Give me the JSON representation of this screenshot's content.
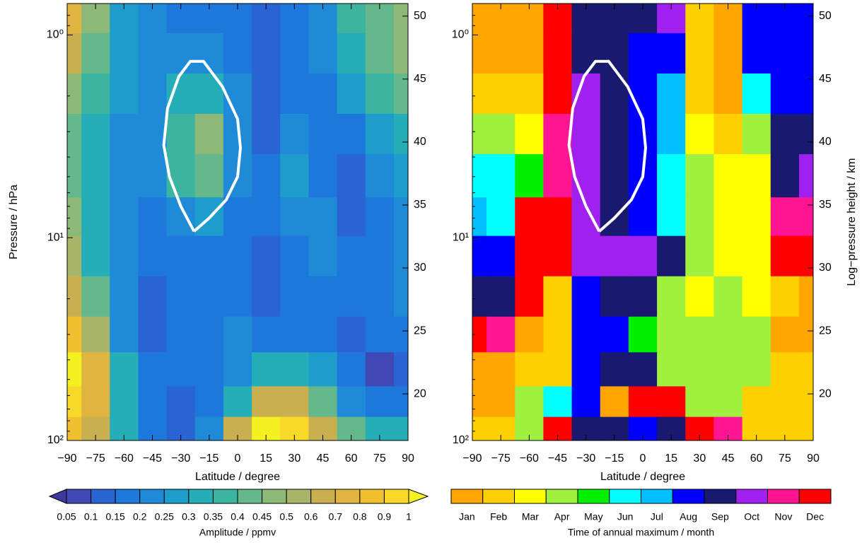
{
  "chart_data": [
    {
      "type": "contour",
      "xlabel": "Latitude / degree",
      "ylabel": "Pressure / hPa",
      "log_y": true,
      "xlim": [
        -90,
        90
      ],
      "ylim": [
        100,
        0.7
      ],
      "y2lim": [
        16.3,
        51
      ],
      "xticks": [
        {
          "value": -90,
          "label": "−90"
        },
        {
          "value": -75,
          "label": "−75"
        },
        {
          "value": -60,
          "label": "−60"
        },
        {
          "value": -45,
          "label": "−45"
        },
        {
          "value": -30,
          "label": "−30"
        },
        {
          "value": -15,
          "label": "−15"
        },
        0,
        15,
        30,
        45,
        60,
        75,
        90
      ],
      "yticks": [
        {
          "value": 1,
          "label": "10⁰"
        },
        {
          "value": 10,
          "label": "10¹"
        },
        {
          "value": 100,
          "label": "10²"
        }
      ],
      "minor_yticks": [
        0.8,
        0.9,
        2,
        3,
        4,
        5,
        6,
        7,
        8,
        9,
        20,
        30,
        40,
        50,
        60,
        70,
        80,
        90
      ],
      "y2ticks": [
        20,
        25,
        30,
        35,
        40,
        45,
        50
      ],
      "x": [
        -90,
        -75,
        -60,
        -45,
        -30,
        -15,
        0,
        15,
        30,
        45,
        60,
        75,
        90
      ],
      "y": [
        0.8,
        1.2,
        2,
        3,
        5,
        8,
        12,
        20,
        30,
        45,
        65,
        90
      ],
      "z": [
        [
          0.7,
          0.45,
          0.25,
          0.2,
          0.15,
          0.15,
          0.15,
          0.1,
          0.15,
          0.2,
          0.35,
          0.4,
          0.45
        ],
        [
          0.6,
          0.4,
          0.25,
          0.2,
          0.2,
          0.2,
          0.15,
          0.1,
          0.15,
          0.2,
          0.3,
          0.4,
          0.45
        ],
        [
          0.45,
          0.35,
          0.25,
          0.2,
          0.3,
          0.3,
          0.2,
          0.1,
          0.15,
          0.15,
          0.25,
          0.35,
          0.4
        ],
        [
          0.4,
          0.3,
          0.2,
          0.2,
          0.35,
          0.45,
          0.2,
          0.1,
          0.2,
          0.15,
          0.15,
          0.25,
          0.3
        ],
        [
          0.4,
          0.3,
          0.2,
          0.2,
          0.35,
          0.4,
          0.2,
          0.15,
          0.25,
          0.15,
          0.1,
          0.2,
          0.25
        ],
        [
          0.45,
          0.3,
          0.2,
          0.15,
          0.2,
          0.25,
          0.15,
          0.15,
          0.2,
          0.2,
          0.1,
          0.15,
          0.2
        ],
        [
          0.5,
          0.3,
          0.2,
          0.15,
          0.15,
          0.15,
          0.15,
          0.1,
          0.15,
          0.2,
          0.15,
          0.15,
          0.2
        ],
        [
          0.6,
          0.4,
          0.2,
          0.1,
          0.15,
          0.15,
          0.15,
          0.1,
          0.15,
          0.15,
          0.15,
          0.15,
          0.2
        ],
        [
          0.8,
          0.5,
          0.2,
          0.1,
          0.15,
          0.15,
          0.2,
          0.15,
          0.15,
          0.15,
          0.1,
          0.15,
          0.15
        ],
        [
          1.0,
          0.7,
          0.3,
          0.15,
          0.15,
          0.15,
          0.2,
          0.3,
          0.3,
          0.25,
          0.15,
          0.05,
          0.1
        ],
        [
          0.9,
          0.7,
          0.3,
          0.15,
          0.1,
          0.15,
          0.3,
          0.6,
          0.6,
          0.4,
          0.2,
          0.15,
          0.15
        ],
        [
          0.8,
          0.6,
          0.3,
          0.15,
          0.1,
          0.2,
          0.6,
          1.0,
          0.9,
          0.6,
          0.4,
          0.3,
          0.3
        ]
      ],
      "outline": {
        "x": [
          -23,
          -30,
          -36,
          -39,
          -37,
          -31,
          -25,
          -18,
          -8,
          0,
          1.5,
          0,
          -6,
          -15,
          -23
        ],
        "y": [
          9.3,
          7,
          5,
          3.5,
          2.3,
          1.6,
          1.35,
          1.35,
          1.8,
          2.6,
          3.6,
          5,
          6.5,
          8,
          9.3
        ],
        "color": "#ffffff"
      },
      "colorbar": {
        "title": "Amplitude / ppmv",
        "boundaries": [
          0.05,
          0.1,
          0.15,
          0.2,
          0.25,
          0.3,
          0.35,
          0.4,
          0.45,
          0.5,
          0.6,
          0.7,
          0.8,
          0.9,
          1
        ],
        "colors": [
          "#3c3a9a",
          "#3f48b4",
          "#2a64d2",
          "#1e78dc",
          "#1e8ad8",
          "#1e9ccc",
          "#26aeb8",
          "#3cb4a0",
          "#64b88c",
          "#8cb878",
          "#a8b468",
          "#c8b050",
          "#e0b440",
          "#f0c030",
          "#f8d828",
          "#f5f020"
        ]
      }
    },
    {
      "type": "heatmap",
      "xlabel": "Latitude / degree",
      "y2label": "Log−pressure height / km",
      "log_y": true,
      "xlim": [
        -90,
        90
      ],
      "ylim": [
        100,
        0.7
      ],
      "y2lim": [
        16.3,
        51
      ],
      "xticks": [
        {
          "value": -90,
          "label": "−90"
        },
        {
          "value": -75,
          "label": "−75"
        },
        {
          "value": -60,
          "label": "−60"
        },
        {
          "value": -45,
          "label": "−45"
        },
        {
          "value": -30,
          "label": "−30"
        },
        {
          "value": -15,
          "label": "−15"
        },
        0,
        15,
        30,
        45,
        60,
        75,
        90
      ],
      "yticks": [
        {
          "value": 1,
          "label": "10⁰"
        },
        {
          "value": 10,
          "label": "10¹"
        },
        {
          "value": 100,
          "label": "10²"
        }
      ],
      "minor_yticks": [
        0.8,
        0.9,
        2,
        3,
        4,
        5,
        6,
        7,
        8,
        9,
        20,
        30,
        40,
        50,
        60,
        70,
        80,
        90
      ],
      "y2ticks": [
        20,
        25,
        30,
        35,
        40,
        45,
        50
      ],
      "x": [
        -90,
        -75,
        -60,
        -45,
        -30,
        -15,
        0,
        15,
        30,
        45,
        60,
        75,
        90
      ],
      "y": [
        0.8,
        1.2,
        2,
        3,
        5,
        8,
        12,
        20,
        30,
        45,
        65,
        90
      ],
      "z": [
        [
          1,
          1,
          1,
          12,
          9,
          9,
          9,
          10,
          2,
          1,
          8,
          8,
          8
        ],
        [
          1,
          1,
          1,
          12,
          9,
          9,
          8,
          8,
          2,
          1,
          8,
          8,
          8
        ],
        [
          2,
          2,
          2,
          12,
          10,
          9,
          8,
          7,
          2,
          1,
          6,
          8,
          8
        ],
        [
          4,
          4,
          3,
          11,
          10,
          9,
          8,
          7,
          3,
          2,
          4,
          9,
          9
        ],
        [
          6,
          6,
          5,
          11,
          10,
          9,
          8,
          6,
          4,
          3,
          3,
          9,
          10
        ],
        [
          7,
          6,
          12,
          12,
          10,
          9,
          8,
          6,
          4,
          3,
          3,
          11,
          11
        ],
        [
          8,
          8,
          12,
          12,
          10,
          10,
          10,
          9,
          4,
          3,
          3,
          12,
          12
        ],
        [
          9,
          9,
          12,
          2,
          8,
          9,
          9,
          4,
          3,
          4,
          3,
          2,
          1
        ],
        [
          12,
          11,
          1,
          2,
          8,
          8,
          5,
          4,
          4,
          4,
          4,
          1,
          1
        ],
        [
          1,
          1,
          2,
          2,
          8,
          9,
          9,
          4,
          4,
          4,
          4,
          2,
          2
        ],
        [
          1,
          1,
          4,
          6,
          8,
          1,
          12,
          12,
          4,
          4,
          2,
          2,
          2
        ],
        [
          2,
          2,
          4,
          12,
          9,
          9,
          8,
          9,
          12,
          11,
          2,
          2,
          2
        ]
      ],
      "outline": {
        "x": [
          -23,
          -30,
          -36,
          -39,
          -37,
          -31,
          -25,
          -18,
          -8,
          0,
          1.5,
          0,
          -6,
          -15,
          -23
        ],
        "y": [
          9.3,
          7,
          5,
          3.5,
          2.3,
          1.6,
          1.35,
          1.35,
          1.8,
          2.6,
          3.6,
          5,
          6.5,
          8,
          9.3
        ],
        "color": "#ffffff"
      },
      "colorbar": {
        "title": "Time of annual maximum / month",
        "categories": [
          "Jan",
          "Feb",
          "Mar",
          "Apr",
          "May",
          "Jun",
          "Jul",
          "Aug",
          "Sep",
          "Oct",
          "Nov",
          "Dec"
        ],
        "colors": [
          "#ffa500",
          "#ffd000",
          "#ffff00",
          "#a0f040",
          "#00f000",
          "#00ffff",
          "#00c0ff",
          "#0000ff",
          "#191970",
          "#a020f0",
          "#ff1493",
          "#ff0000"
        ]
      }
    }
  ]
}
